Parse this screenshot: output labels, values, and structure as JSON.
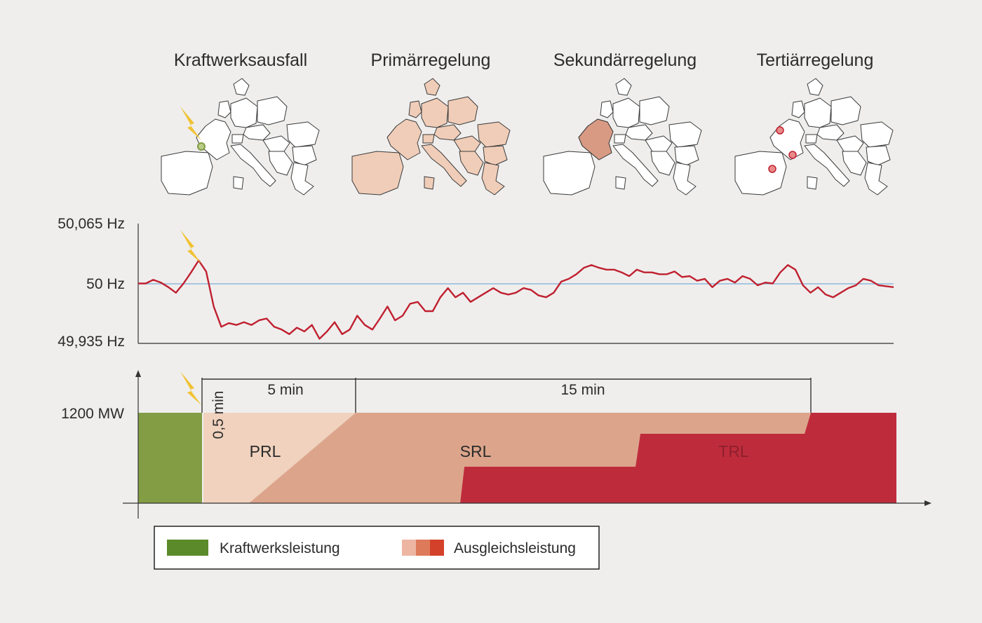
{
  "stages": [
    {
      "title": "Kraftwerksausfall",
      "state": "outage"
    },
    {
      "title": "Primärregelung",
      "state": "all-europe"
    },
    {
      "title": "Sekundärregelung",
      "state": "france"
    },
    {
      "title": "Tertiärregelung",
      "state": "dots"
    }
  ],
  "frequency_chart": {
    "y_ticks": [
      "50,065 Hz",
      "50 Hz",
      "49,935 Hz"
    ],
    "y_values": [
      50.065,
      50.0,
      49.935
    ],
    "nominal": 50.0,
    "series": [
      [
        0,
        50.0
      ],
      [
        2,
        50.0
      ],
      [
        4,
        50.004
      ],
      [
        6,
        50.001
      ],
      [
        8,
        49.996
      ],
      [
        10,
        49.99
      ],
      [
        12,
        50.0
      ],
      [
        14,
        50.012
      ],
      [
        16,
        50.025
      ],
      [
        18,
        50.013
      ],
      [
        20,
        49.975
      ],
      [
        22,
        49.953
      ],
      [
        24,
        49.957
      ],
      [
        26,
        49.955
      ],
      [
        28,
        49.958
      ],
      [
        30,
        49.955
      ],
      [
        32,
        49.96
      ],
      [
        34,
        49.962
      ],
      [
        36,
        49.953
      ],
      [
        38,
        49.95
      ],
      [
        40,
        49.945
      ],
      [
        42,
        49.952
      ],
      [
        44,
        49.948
      ],
      [
        46,
        49.955
      ],
      [
        48,
        49.94
      ],
      [
        50,
        49.948
      ],
      [
        52,
        49.958
      ],
      [
        54,
        49.945
      ],
      [
        56,
        49.95
      ],
      [
        58,
        49.965
      ],
      [
        60,
        49.955
      ],
      [
        62,
        49.95
      ],
      [
        64,
        49.962
      ],
      [
        66,
        49.975
      ],
      [
        68,
        49.96
      ],
      [
        70,
        49.965
      ],
      [
        72,
        49.978
      ],
      [
        74,
        49.98
      ],
      [
        76,
        49.97
      ],
      [
        78,
        49.97
      ],
      [
        80,
        49.985
      ],
      [
        82,
        49.995
      ],
      [
        84,
        49.985
      ],
      [
        86,
        49.99
      ],
      [
        88,
        49.98
      ],
      [
        90,
        49.985
      ],
      [
        92,
        49.99
      ],
      [
        94,
        49.995
      ],
      [
        96,
        49.99
      ],
      [
        98,
        49.988
      ],
      [
        100,
        49.99
      ],
      [
        102,
        49.995
      ],
      [
        104,
        49.993
      ],
      [
        106,
        49.987
      ],
      [
        108,
        49.985
      ],
      [
        110,
        49.99
      ],
      [
        112,
        50.002
      ],
      [
        114,
        50.005
      ],
      [
        116,
        50.01
      ],
      [
        118,
        50.017
      ],
      [
        120,
        50.02
      ],
      [
        122,
        50.017
      ],
      [
        124,
        50.015
      ],
      [
        126,
        50.015
      ],
      [
        128,
        50.012
      ],
      [
        130,
        50.008
      ],
      [
        132,
        50.015
      ],
      [
        134,
        50.012
      ],
      [
        136,
        50.012
      ],
      [
        138,
        50.01
      ],
      [
        140,
        50.01
      ],
      [
        142,
        50.013
      ],
      [
        144,
        50.007
      ],
      [
        146,
        50.008
      ],
      [
        148,
        50.003
      ],
      [
        150,
        50.005
      ],
      [
        152,
        49.996
      ],
      [
        154,
        50.003
      ],
      [
        156,
        50.005
      ],
      [
        158,
        50.001
      ],
      [
        160,
        50.008
      ],
      [
        162,
        50.005
      ],
      [
        164,
        49.998
      ],
      [
        166,
        50.001
      ],
      [
        168,
        50.0
      ],
      [
        170,
        50.012
      ],
      [
        172,
        50.02
      ],
      [
        174,
        50.015
      ],
      [
        176,
        49.998
      ],
      [
        178,
        49.99
      ],
      [
        180,
        49.996
      ],
      [
        182,
        49.988
      ],
      [
        184,
        49.985
      ],
      [
        186,
        49.99
      ],
      [
        188,
        49.995
      ],
      [
        190,
        49.998
      ],
      [
        192,
        50.005
      ],
      [
        194,
        50.003
      ],
      [
        196,
        49.998
      ],
      [
        198,
        49.997
      ],
      [
        200,
        49.996
      ]
    ]
  },
  "power_chart": {
    "y_tick": "1200 MW",
    "capacity_mw": 1200,
    "interval_labels": [
      "0,5 min",
      "5 min",
      "15 min"
    ],
    "interval_minutes": [
      0.5,
      5,
      15
    ],
    "areas": [
      "PRL",
      "SRL",
      "TRL"
    ]
  },
  "legend": {
    "plant_label": "Kraftwerksleistung",
    "balancing_label": "Ausgleichsleistung"
  },
  "colors": {
    "plant": "#829d44",
    "prl": "#f0d2be",
    "srl": "#dca58b",
    "trl": "#be2c3c",
    "frequency_line": "#c0202f",
    "nominal_line": "#7ab0d8",
    "lightning": "#f1c232",
    "map_land": "#ffffff",
    "map_all": "#f0cdb8",
    "map_france": "#d99a83",
    "legend_plant_swatch": "#5a8a2a",
    "legend_balancing_swatches": [
      "#edb6a2",
      "#dd7a5a",
      "#d4412a"
    ]
  }
}
